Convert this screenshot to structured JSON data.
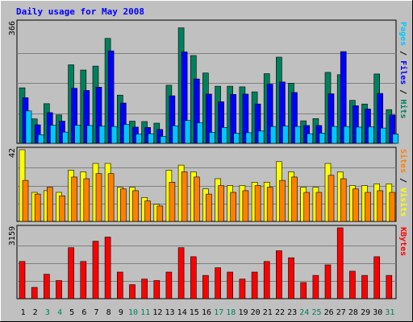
{
  "title": "Daily usage for May 2008",
  "chart_data": {
    "type": "bar",
    "title": "Daily usage for May 2008",
    "categories": [
      "1",
      "2",
      "3",
      "4",
      "5",
      "6",
      "7",
      "8",
      "9",
      "10",
      "11",
      "12",
      "13",
      "14",
      "15",
      "16",
      "17",
      "18",
      "19",
      "20",
      "21",
      "22",
      "23",
      "24",
      "25",
      "26",
      "27",
      "28",
      "29",
      "30",
      "31"
    ],
    "weekend_days": [
      "3",
      "4",
      "10",
      "11",
      "17",
      "18",
      "24",
      "25",
      "31"
    ],
    "panels": [
      {
        "id": "top",
        "ymax": 366,
        "ymax_label": "366",
        "right_label": [
          {
            "text": "Pages",
            "color": "#00c8ff"
          },
          {
            "text": " / ",
            "color": "#000000"
          },
          {
            "text": "Files",
            "color": "#0000ff"
          },
          {
            "text": " / ",
            "color": "#000000"
          },
          {
            "text": "Hits",
            "color": "#00805c"
          }
        ],
        "series": [
          {
            "name": "Hits",
            "color": "#00805c",
            "values": [
              168,
              74,
              120,
              86,
              238,
              222,
              234,
              318,
              146,
              67,
              66,
              61,
              176,
              350,
              266,
              213,
              173,
              173,
              171,
              156,
              211,
              261,
              182,
              68,
              75,
              215,
              208,
              130,
              119,
              210,
              102
            ]
          },
          {
            "name": "Files",
            "color": "#0000ff",
            "values": [
              138,
              56,
              93,
              67,
              167,
              160,
              170,
              280,
              122,
              49,
              48,
              42,
              144,
              277,
              195,
              149,
              126,
              148,
              149,
              119,
              179,
              186,
              154,
              54,
              54,
              150,
              278,
              114,
              104,
              151,
              86
            ]
          },
          {
            "name": "Pages",
            "color": "#00c8ff",
            "values": [
              98,
              26,
              55,
              34,
              55,
              54,
              52,
              51,
              57,
              28,
              29,
              21,
              53,
              69,
              62,
              33,
              48,
              30,
              32,
              37,
              51,
              52,
              51,
              29,
              31,
              51,
              51,
              49,
              50,
              46,
              28
            ]
          }
        ]
      },
      {
        "id": "middle",
        "ymax": 42,
        "ymax_label": "42",
        "right_label": [
          {
            "text": "Sites",
            "color": "#ff8000"
          },
          {
            "text": " / ",
            "color": "#000000"
          },
          {
            "text": "Visits",
            "color": "#ffff00"
          }
        ],
        "series": [
          {
            "name": "Visits",
            "color": "#ffff00",
            "values": [
              42,
              17,
              18,
              17,
              30,
              29,
              34,
              34,
              20,
              20,
              14,
              10,
              30,
              33,
              29,
              19,
              25,
              21,
              21,
              23,
              23,
              35,
              29,
              20,
              20,
              34,
              29,
              21,
              21,
              22,
              22
            ]
          },
          {
            "name": "Sites",
            "color": "#ff8000",
            "values": [
              24,
              16,
              20,
              15,
              26,
              25,
              28,
              28,
              19,
              18,
              12,
              9,
              23,
              29,
              26,
              16,
              21,
              17,
              18,
              21,
              20,
              24,
              26,
              17,
              17,
              27,
              25,
              19,
              17,
              18,
              17
            ]
          }
        ]
      },
      {
        "id": "bottom",
        "ymax": 3159,
        "ymax_label": "3159",
        "right_label": [
          {
            "text": "KBytes",
            "color": "#ff0000"
          }
        ],
        "series": [
          {
            "name": "KBytes",
            "color": "#ff0000",
            "values": [
              1659,
              504,
              1089,
              806,
              2273,
              1659,
              2562,
              2746,
              1185,
              623,
              874,
              806,
              1185,
              2273,
              1870,
              1036,
              1377,
              1185,
              874,
              1185,
              1659,
              2136,
              1822,
              718,
              1036,
              1507,
              3159,
              1225,
              1036,
              1870,
              1036
            ]
          }
        ]
      }
    ]
  }
}
